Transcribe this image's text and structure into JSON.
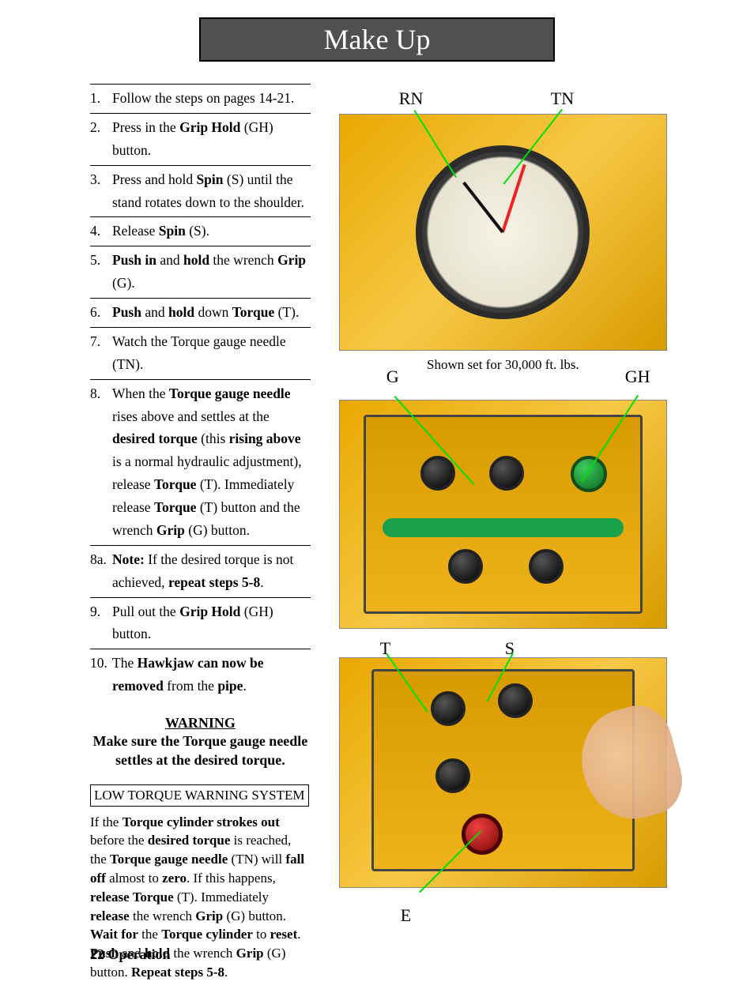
{
  "title": "Make Up",
  "steps": [
    {
      "num": "1.",
      "html": "Follow the steps on pages 14-21."
    },
    {
      "num": "2.",
      "html": "Press in the <b>Grip Hold</b> (GH) button."
    },
    {
      "num": "3.",
      "html": "Press and hold <b>Spin</b> (S) until the stand rotates down to the shoulder."
    },
    {
      "num": "4.",
      "html": "Release <b>Spin</b> (S)."
    },
    {
      "num": "5.",
      "html": "<b>Push in</b> and <b>hold</b> the wrench <b>Grip</b> (G)."
    },
    {
      "num": "6.",
      "html": "<b>Push</b> and <b>hold</b> down <b>Torque</b> (T)."
    },
    {
      "num": "7.",
      "html": "Watch the Torque gauge needle (TN)."
    },
    {
      "num": "8.",
      "html": "When the <b>Torque gauge needle</b> rises above and settles at the <b>desired torque</b> (this <b>rising above</b> is a normal hydraulic adjustment), release <b>Torque</b> (T).  Immediately release <b>Torque</b> (T) button and the wrench <b>Grip</b> (G) button."
    },
    {
      "num": "8a.",
      "html": "<b>Note:</b>  If the desired torque is not achieved, <b>repeat steps 5-8</b>."
    },
    {
      "num": "9.",
      "html": "Pull out the <b>Grip Hold</b> (GH) button."
    },
    {
      "num": "10.",
      "html": "The <b>Hawkjaw can now be removed</b> from the <b>pipe</b>."
    }
  ],
  "warning_heading": "WARNING",
  "warning_text": "Make sure the Torque gauge needle settles at the desired torque.",
  "ltws_heading": "LOW TORQUE WARNING SYSTEM",
  "ltws_html": "If the <b>Torque cylinder strokes out</b> before the <b>desired torque</b> is reached, the <b>Torque gauge needle</b> (TN) will <b>fall off</b> almost to <b>zero</b>.  If this happens, <b>release Torque</b> (T).  Immediately <b>release</b> the wrench <b>Grip</b> (G) button.  <b>Wait for</b> the <b>Torque cylinder</b> to <b>reset</b>.  <b>Push</b> and <b>hold</b> the wrench <b>Grip</b> (G) button.   <b>Repeat steps 5-8</b>.",
  "footer": "22 Operation",
  "labels": {
    "RN": "RN",
    "TN": "TN",
    "G": "G",
    "GH": "GH",
    "T": "T",
    "S": "S",
    "E": "E"
  },
  "fig1_caption": "Shown set for 30,000 ft. lbs.",
  "colors": {
    "banner_bg": "#505050",
    "leader": "#00e000",
    "machine": "#e8a800",
    "green_button": "#0c6a1e",
    "red_button": "#7a0606"
  }
}
